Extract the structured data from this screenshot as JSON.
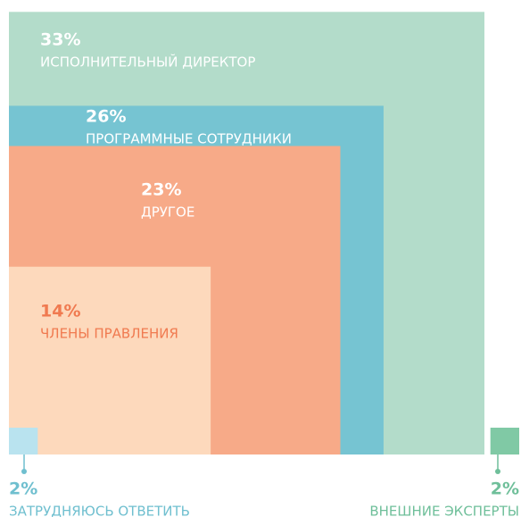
{
  "chart_data": {
    "type": "nested-squares",
    "categories": [
      "ИСПОЛНИТЕЛЬНЫЙ ДИРЕКТОР",
      "ПРОГРАММНЫЕ СОТРУДНИКИ",
      "ДРУГОЕ",
      "ЧЛЕНЫ ПРАВЛЕНИЯ",
      "ЗАТРУДНЯЮСЬ ОТВЕТИТЬ",
      "ВНЕШНИЕ ЭКСПЕРТЫ"
    ],
    "values": [
      33,
      26,
      23,
      14,
      2,
      2
    ],
    "value_labels": [
      "33%",
      "26%",
      "23%",
      "14%",
      "2%",
      "2%"
    ],
    "colors": [
      "#b3dcca",
      "#76c4d2",
      "#f7aa88",
      "#fdd9bc",
      "#b9e3ef",
      "#80c9a5"
    ]
  }
}
